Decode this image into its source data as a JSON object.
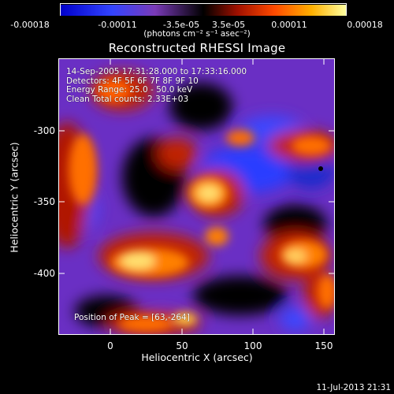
{
  "colorbar": {
    "ticks": [
      "-0.00018",
      "-0.00011",
      "-3.5e-05",
      "3.5e-05",
      "0.00011",
      "0.00018"
    ],
    "units_label": "(photons cm⁻² s⁻¹ asec⁻²)"
  },
  "plot": {
    "title": "Reconstructed RHESSI Image",
    "info_lines": [
      "14-Sep-2005 17:31:28.000 to 17:33:16.000",
      "Detectors: 4F 5F 6F 7F 8F 9F 10",
      "Energy Range: 25.0 - 50.0 keV",
      "Clean     Total counts: 2.33E+03"
    ],
    "peak_text": "Position of Peak = [63,-264]",
    "x_ticks": [
      "0",
      "50",
      "100",
      "150"
    ],
    "y_ticks": [
      "-300",
      "-350",
      "-400"
    ],
    "x_label": "Heliocentric X (arcsec)",
    "y_label": "Heliocentric Y (arcsec)"
  },
  "footer": {
    "timestamp": "11-Jul-2013 21:31"
  },
  "colors": {
    "palette": [
      "#0000cc",
      "#2233ff",
      "#6a30c8",
      "#7a40b0",
      "#000000",
      "#8a1010",
      "#d02000",
      "#ff6a00",
      "#ffc000",
      "#fff080"
    ]
  }
}
